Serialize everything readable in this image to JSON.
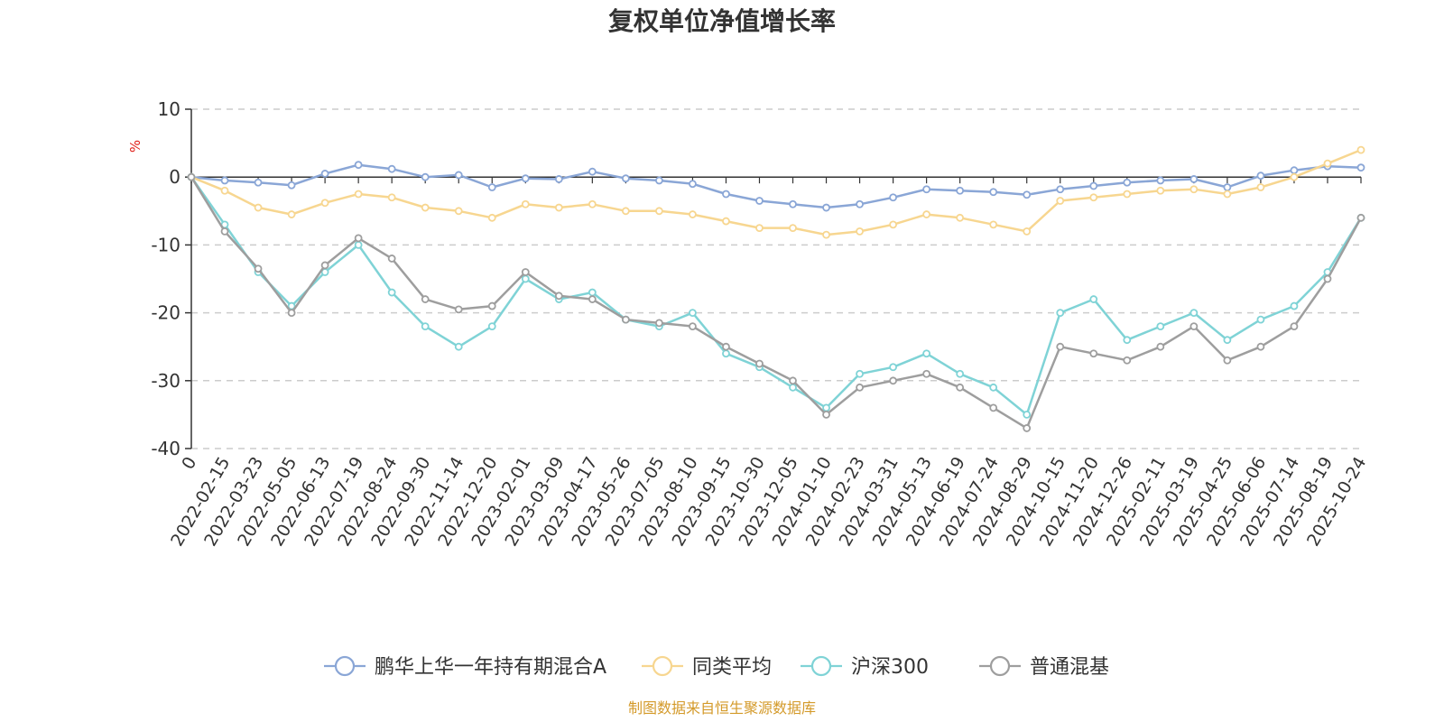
{
  "chart_data": {
    "type": "line",
    "title": "复权单位净值增长率",
    "ylabel": "%",
    "ylim": [
      -40,
      10
    ],
    "yticks": [
      10,
      0,
      -10,
      -20,
      -30,
      -40
    ],
    "grid": true,
    "legend_position": "bottom",
    "source": "制图数据来自恒生聚源数据库",
    "x_labels": [
      "0",
      "2022-02-15",
      "2022-03-23",
      "2022-05-05",
      "2022-06-13",
      "2022-07-19",
      "2022-08-24",
      "2022-09-30",
      "2022-11-14",
      "2022-12-20",
      "2023-02-01",
      "2023-03-09",
      "2023-04-17",
      "2023-05-26",
      "2023-07-05",
      "2023-08-10",
      "2023-09-15",
      "2023-10-30",
      "2023-12-05",
      "2024-01-10",
      "2024-02-23",
      "2024-03-31",
      "2024-05-13",
      "2024-06-19",
      "2024-07-24",
      "2024-08-29",
      "2024-10-15",
      "2024-11-20",
      "2024-12-26",
      "2025-02-11",
      "2025-03-19",
      "2025-04-25",
      "2025-06-06",
      "2025-07-14",
      "2025-08-19",
      "2025-10-24"
    ],
    "series": [
      {
        "name": "鹏华上华一年持有期混合A",
        "color": "#8aa6d6",
        "values": [
          0,
          -0.5,
          -0.8,
          -1.2,
          0.5,
          1.8,
          1.2,
          0,
          0.3,
          -1.5,
          -0.2,
          -0.3,
          0.8,
          -0.2,
          -0.5,
          -1.0,
          -2.5,
          -3.5,
          -4.0,
          -4.5,
          -4.0,
          -3.0,
          -1.8,
          -2.0,
          -2.2,
          -2.6,
          -1.8,
          -1.3,
          -0.8,
          -0.5,
          -0.3,
          -1.5,
          0.2,
          1.0,
          1.6,
          1.4
        ]
      },
      {
        "name": "同类平均",
        "color": "#f7d690",
        "values": [
          0,
          -2.0,
          -4.5,
          -5.5,
          -3.8,
          -2.5,
          -3.0,
          -4.5,
          -5.0,
          -6.0,
          -4.0,
          -4.5,
          -4.0,
          -5.0,
          -5.0,
          -5.5,
          -6.5,
          -7.5,
          -7.5,
          -8.5,
          -8.0,
          -7.0,
          -5.5,
          -6.0,
          -7.0,
          -8.0,
          -3.5,
          -3.0,
          -2.5,
          -2.0,
          -1.8,
          -2.5,
          -1.5,
          0,
          2.0,
          4.0
        ]
      },
      {
        "name": "沪深300",
        "color": "#7fd3d6",
        "values": [
          0,
          -7.0,
          -14.0,
          -19.0,
          -14.0,
          -10.0,
          -17.0,
          -22.0,
          -25.0,
          -22.0,
          -15.0,
          -18.0,
          -17.0,
          -21.0,
          -22.0,
          -20.0,
          -26.0,
          -28.0,
          -31.0,
          -34.0,
          -29.0,
          -28.0,
          -26.0,
          -29.0,
          -31.0,
          -35.0,
          -20.0,
          -18.0,
          -24.0,
          -22.0,
          -20.0,
          -24.0,
          -21.0,
          -19.0,
          -14.0,
          -6.0
        ]
      },
      {
        "name": "普通混基",
        "color": "#9e9e9e",
        "values": [
          0,
          -8.0,
          -13.5,
          -20.0,
          -13.0,
          -9.0,
          -12.0,
          -18.0,
          -19.5,
          -19.0,
          -14.0,
          -17.5,
          -18.0,
          -21.0,
          -21.5,
          -22.0,
          -25.0,
          -27.5,
          -30.0,
          -35.0,
          -31.0,
          -30.0,
          -29.0,
          -31.0,
          -34.0,
          -37.0,
          -25.0,
          -26.0,
          -27.0,
          -25.0,
          -22.0,
          -27.0,
          -25.0,
          -22.0,
          -15.0,
          -6.0
        ]
      }
    ]
  }
}
